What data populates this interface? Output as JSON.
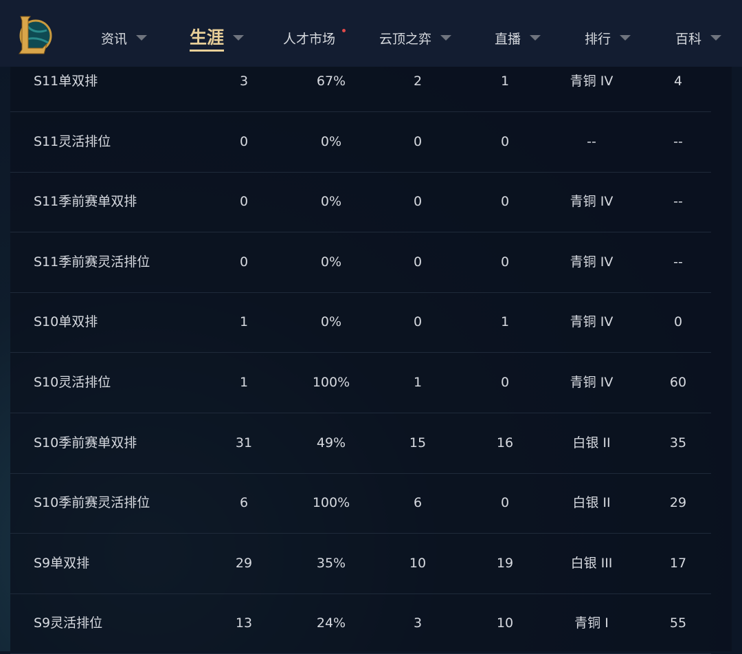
{
  "nav": {
    "items": [
      {
        "label": "资讯",
        "caret": true
      },
      {
        "label": "生涯",
        "caret": true,
        "active": true
      },
      {
        "label": "人才市场",
        "caret": false,
        "badge_dot": true
      },
      {
        "label": "云顶之弈",
        "caret": true
      },
      {
        "label": "直播",
        "caret": true
      },
      {
        "label": "排行",
        "caret": true
      },
      {
        "label": "百科",
        "caret": true
      }
    ],
    "accent": "#e8cf98"
  },
  "table": {
    "rows": [
      [
        "S11单双排",
        "3",
        "67%",
        "2",
        "1",
        "青铜 IV",
        "4"
      ],
      [
        "S11灵活排位",
        "0",
        "0%",
        "0",
        "0",
        "--",
        "--"
      ],
      [
        "S11季前赛单双排",
        "0",
        "0%",
        "0",
        "0",
        "青铜 IV",
        "--"
      ],
      [
        "S11季前赛灵活排位",
        "0",
        "0%",
        "0",
        "0",
        "青铜 IV",
        "--"
      ],
      [
        "S10单双排",
        "1",
        "0%",
        "0",
        "1",
        "青铜 IV",
        "0"
      ],
      [
        "S10灵活排位",
        "1",
        "100%",
        "1",
        "0",
        "青铜 IV",
        "60"
      ],
      [
        "S10季前赛单双排",
        "31",
        "49%",
        "15",
        "16",
        "白银 II",
        "35"
      ],
      [
        "S10季前赛灵活排位",
        "6",
        "100%",
        "6",
        "0",
        "白银 II",
        "29"
      ],
      [
        "S9单双排",
        "29",
        "35%",
        "10",
        "19",
        "白银 III",
        "17"
      ],
      [
        "S9灵活排位",
        "13",
        "24%",
        "3",
        "10",
        "青铜 I",
        "55"
      ]
    ]
  }
}
